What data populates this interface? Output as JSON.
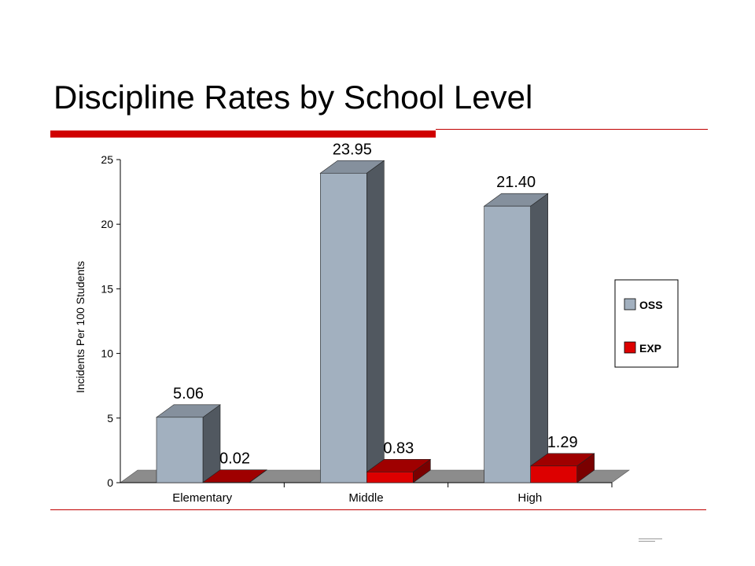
{
  "slide": {
    "title": "Discipline Rates by School Level",
    "accent_color": "#d00000",
    "rule_color": "#c00000"
  },
  "chart_data": {
    "type": "bar",
    "categories": [
      "Elementary",
      "Middle",
      "High"
    ],
    "series": [
      {
        "name": "OSS",
        "values": [
          5.06,
          23.95,
          21.4
        ],
        "labels": [
          "5.06",
          "23.95",
          "21.40"
        ],
        "color": "#a2b0bf"
      },
      {
        "name": "EXP",
        "values": [
          0.02,
          0.83,
          1.29
        ],
        "labels": [
          "0.02",
          "0.83",
          "1.29"
        ],
        "color": "#dd0000"
      }
    ],
    "title": "",
    "xlabel": "",
    "ylabel": "Incidents Per 100 Students",
    "ylim": [
      0,
      25
    ],
    "yticks": [
      "0",
      "5",
      "10",
      "15",
      "20",
      "25"
    ],
    "grid": false,
    "legend_position": "right",
    "style": "3d"
  }
}
